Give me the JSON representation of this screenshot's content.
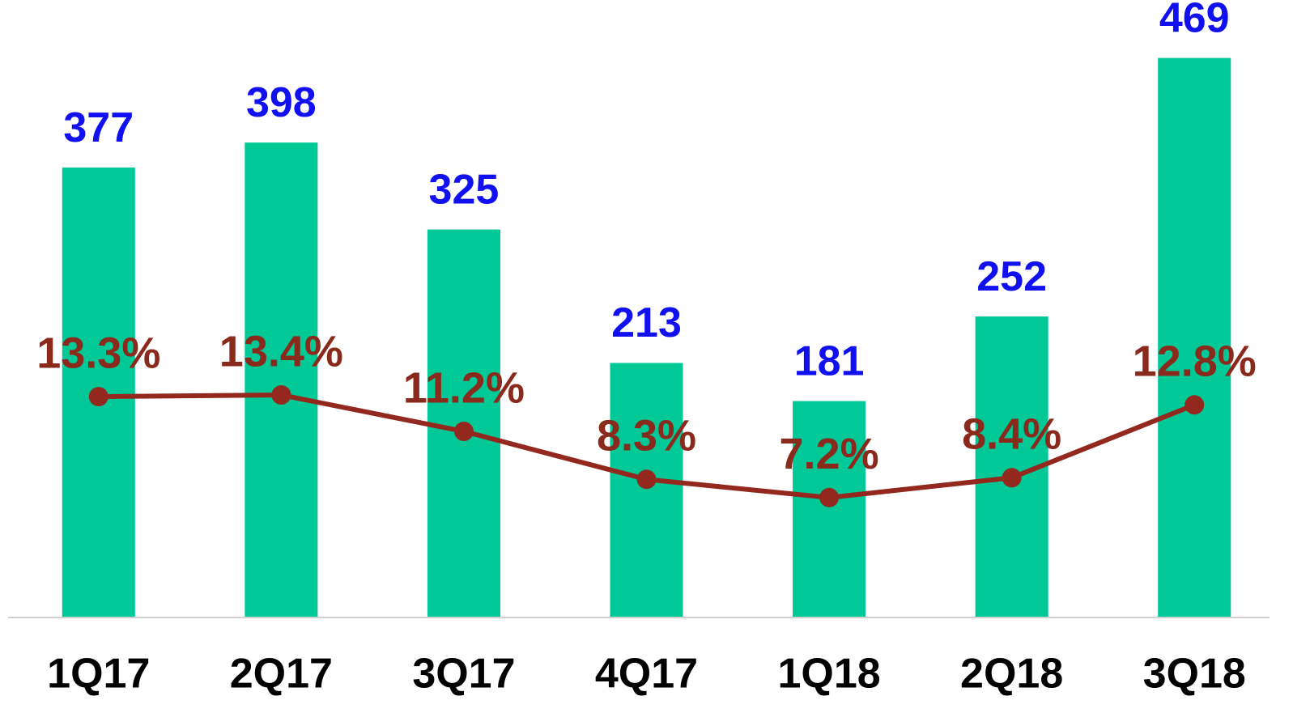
{
  "chart_data": {
    "type": "bar",
    "categories": [
      "1Q17",
      "2Q17",
      "3Q17",
      "4Q17",
      "1Q18",
      "2Q18",
      "3Q18"
    ],
    "series": [
      {
        "type": "bar",
        "color": "#00c896",
        "label_color": "#1010f0",
        "values": [
          377,
          398,
          325,
          213,
          181,
          252,
          469
        ]
      },
      {
        "type": "line",
        "axis": "y2",
        "color": "#93291e",
        "label_color": "#8a2a1c",
        "values": [
          13.3,
          13.4,
          11.2,
          8.3,
          7.2,
          8.4,
          12.8
        ],
        "value_labels": [
          "13.3%",
          "13.4%",
          "11.2%",
          "8.3%",
          "7.2%",
          "8.4%",
          "12.8%"
        ]
      }
    ],
    "ylim": [
      0,
      500
    ],
    "y2lim": [
      0,
      36
    ]
  }
}
